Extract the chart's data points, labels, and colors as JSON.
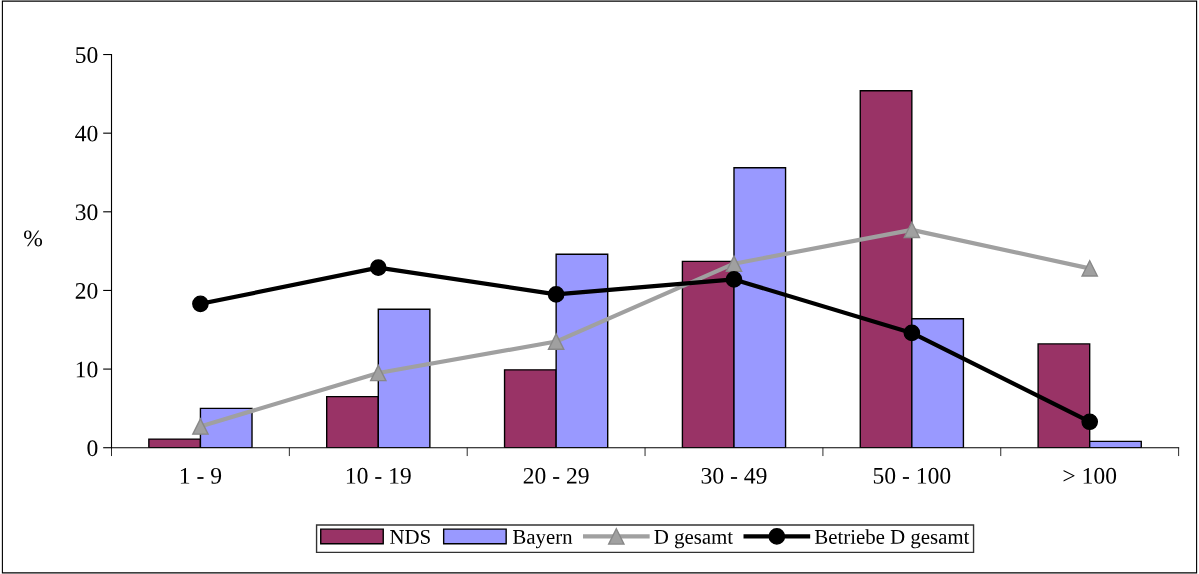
{
  "chart_data": {
    "type": "bar",
    "ylabel": "%",
    "categories": [
      "1 - 9",
      "10 - 19",
      "20 - 29",
      "30 - 49",
      "50 - 100",
      "> 100"
    ],
    "ylim": [
      0,
      50
    ],
    "yticks": [
      0,
      10,
      20,
      30,
      40,
      50
    ],
    "grid": false,
    "legend": "bottom",
    "series": [
      {
        "name": "NDS",
        "color": "#993366",
        "values": [
          1.1,
          6.5,
          9.9,
          23.7,
          45.4,
          13.2
        ]
      },
      {
        "name": "Bayern",
        "color": "#9999ff",
        "values": [
          5.0,
          17.6,
          24.6,
          35.6,
          16.4,
          0.8
        ]
      },
      {
        "name": "D gesamt",
        "type": "line",
        "color": "#a0a0a0",
        "marker": "triangle",
        "values": [
          2.7,
          9.5,
          13.5,
          23.4,
          27.7,
          22.8
        ]
      },
      {
        "name": "Betriebe D gesamt",
        "type": "line",
        "color": "#000000",
        "marker": "circle",
        "values": [
          18.3,
          22.9,
          19.5,
          21.4,
          14.6,
          3.3
        ]
      }
    ]
  }
}
